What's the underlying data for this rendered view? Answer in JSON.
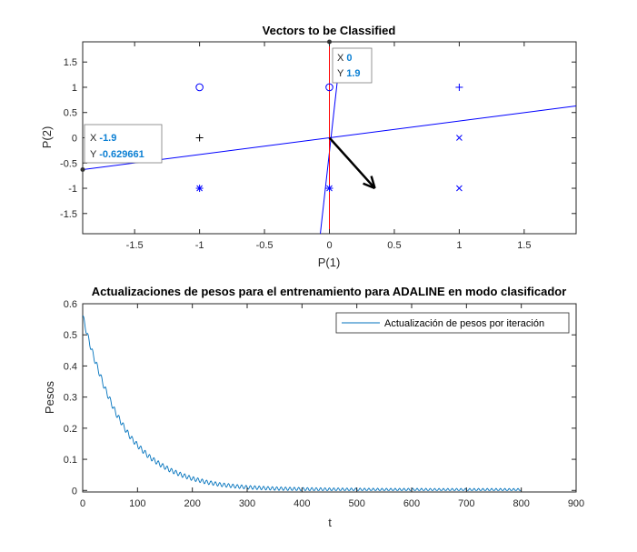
{
  "chart_data": [
    {
      "type": "scatter",
      "title": "Vectors to be Classified",
      "xlabel": "P(1)",
      "ylabel": "P(2)",
      "xlim": [
        -1.9,
        1.9
      ],
      "ylim": [
        -1.9,
        1.9
      ],
      "xticks": [
        "-1.5",
        "-1",
        "-0.5",
        "0",
        "0.5",
        "1",
        "1.5"
      ],
      "xtick_values": [
        -1.5,
        -1,
        -0.5,
        0,
        0.5,
        1,
        1.5
      ],
      "yticks": [
        "-1.5",
        "-1",
        "-0.5",
        "0",
        "0.5",
        "1",
        "1.5"
      ],
      "ytick_values": [
        -1.5,
        -1,
        -0.5,
        0,
        0.5,
        1,
        1.5
      ],
      "points": [
        {
          "x": -1,
          "y": 1,
          "marker": "o",
          "color": "#0000ff"
        },
        {
          "x": 0,
          "y": 1,
          "marker": "o",
          "color": "#0000ff"
        },
        {
          "x": 1,
          "y": 1,
          "marker": "+",
          "color": "#0000ff"
        },
        {
          "x": -1,
          "y": 0,
          "marker": "+",
          "color": "#000000"
        },
        {
          "x": 1,
          "y": 0,
          "marker": "x",
          "color": "#0000ff"
        },
        {
          "x": -1,
          "y": -1,
          "marker": "*",
          "color": "#0000ff"
        },
        {
          "x": 0,
          "y": -1,
          "marker": "*",
          "color": "#0000ff"
        },
        {
          "x": 1,
          "y": -1,
          "marker": "x",
          "color": "#0000ff"
        }
      ],
      "lines": [
        {
          "name": "",
          "x": [
            -1.9,
            1.9
          ],
          "y": [
            -0.63,
            0.63
          ],
          "color": "#0000ff"
        },
        {
          "name": "",
          "x": [
            -0.07,
            0.06
          ],
          "y": [
            -1.9,
            1.1
          ],
          "color": "#0000ff"
        },
        {
          "name": "",
          "x": [
            0,
            0
          ],
          "y": [
            -1.9,
            1.9
          ],
          "color": "#ff0000"
        }
      ],
      "arrow": {
        "from": [
          0,
          0
        ],
        "to": [
          0.35,
          -1.0
        ],
        "color": "#000000"
      },
      "datatips": [
        {
          "x_label": "X",
          "x_value": "0",
          "y_label": "Y",
          "y_value": "1.9",
          "at": [
            0,
            1.9
          ]
        },
        {
          "x_label": "X",
          "x_value": "-1.9",
          "y_label": "Y",
          "y_value": "-0.629661",
          "at": [
            -1.9,
            -0.63
          ]
        }
      ]
    },
    {
      "type": "line",
      "title": "Actualizaciones de pesos para el entrenamiento para ADALINE en modo clasificador",
      "xlabel": "t",
      "ylabel": "Pesos",
      "xlim": [
        0,
        900
      ],
      "ylim": [
        -0.005,
        0.6
      ],
      "xticks": [
        "0",
        "100",
        "200",
        "300",
        "400",
        "500",
        "600",
        "700",
        "800",
        "900"
      ],
      "xtick_values": [
        0,
        100,
        200,
        300,
        400,
        500,
        600,
        700,
        800,
        900
      ],
      "yticks": [
        "0",
        "0.1",
        "0.2",
        "0.3",
        "0.4",
        "0.5",
        "0.6"
      ],
      "ytick_values": [
        0,
        0.1,
        0.2,
        0.3,
        0.4,
        0.5,
        0.6
      ],
      "legend_position": "top-right",
      "series": [
        {
          "name": "Actualización de pesos por iteración",
          "color": "#0072bd",
          "x": [
            0,
            10,
            20,
            30,
            40,
            50,
            60,
            70,
            80,
            90,
            100,
            120,
            140,
            160,
            180,
            200,
            225,
            250,
            275,
            300,
            350,
            400,
            450,
            500,
            550,
            600,
            650,
            700,
            750,
            800
          ],
          "y": [
            0.56,
            0.49,
            0.43,
            0.38,
            0.33,
            0.29,
            0.25,
            0.22,
            0.19,
            0.165,
            0.145,
            0.11,
            0.085,
            0.065,
            0.05,
            0.038,
            0.027,
            0.019,
            0.014,
            0.01,
            0.006,
            0.004,
            0.003,
            0.0025,
            0.002,
            0.002,
            0.0018,
            0.0018,
            0.0017,
            0.0017
          ],
          "oscillation": "high-frequency zigzag decaying from about ±0.01 to ±0.005"
        }
      ]
    }
  ]
}
